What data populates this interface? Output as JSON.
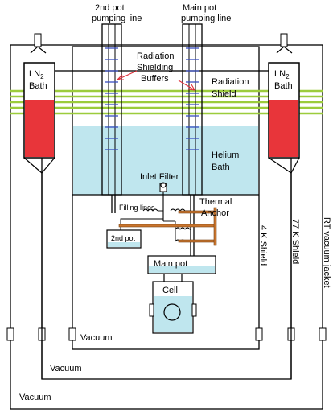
{
  "labels": {
    "second_pot_line_1": "2nd pot",
    "second_pot_line_2": "pumping line",
    "main_pot_line_1": "Main pot",
    "main_pot_line_2": "pumping line",
    "rad_buffers_1": "Radiation",
    "rad_buffers_2": "Shielding",
    "rad_buffers_3": "Buffers",
    "rad_shield_1": "Radiation",
    "rad_shield_2": "Shield",
    "helium_bath_1": "Helium",
    "helium_bath_2": "Bath",
    "inlet_filter": "Inlet Filter",
    "filling_lines": "Filling lines",
    "thermal_anchor_1": "Thermal",
    "thermal_anchor_2": "Anchor",
    "second_pot": "2nd pot",
    "main_pot": "Main pot",
    "cell": "Cell",
    "ln2_left_1": "LN",
    "ln2_left_sub": "2",
    "ln2_left_2": "Bath",
    "ln2_right_1": "LN",
    "ln2_right_sub": "2",
    "ln2_right_2": "Bath",
    "shield_4k": "4 K Shield",
    "shield_77k": "77 K Shield",
    "rt_jacket": "RT vacuum jacket",
    "vacuum_inner": "Vacuum",
    "vacuum_middle": "Vacuum",
    "vacuum_outer": "Vacuum"
  },
  "colors": {
    "helium": "#bfe6ee",
    "ln2_liquid": "#e8353a",
    "radiation_shield": "#9ccc3c",
    "tube_ticks": "#3a4fbf",
    "arrow": "#e0303a",
    "anchor": "#c9752d",
    "pot_fill": "#bfe6ee"
  }
}
